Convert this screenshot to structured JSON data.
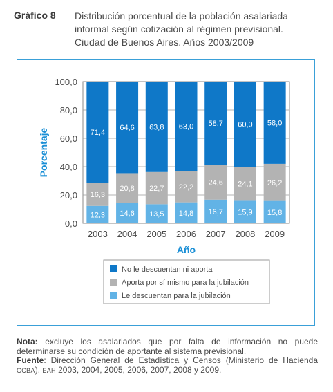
{
  "header": {
    "figure_label": "Gráfico 8",
    "title_lines": [
      "Distribución porcentual de la población asalariada",
      "informal según cotización al régimen previsional.",
      "Ciudad de Buenos Aires. Años 2003/2009"
    ]
  },
  "chart_data": {
    "type": "bar",
    "stacked": true,
    "categories": [
      "2003",
      "2004",
      "2005",
      "2006",
      "2007",
      "2008",
      "2009"
    ],
    "series": [
      {
        "name": "Le descuentan para la jubilación",
        "color": "#62b3e6",
        "values": [
          12.3,
          14.6,
          13.5,
          14.8,
          16.7,
          15.9,
          15.8
        ],
        "labels": [
          "12,3",
          "14,6",
          "13,5",
          "14,8",
          "16,7",
          "15,9",
          "15,8"
        ]
      },
      {
        "name": "Aporta por sí mismo para la jubilación",
        "color": "#b3b3b3",
        "values": [
          16.3,
          20.8,
          22.7,
          22.2,
          24.6,
          24.1,
          26.2
        ],
        "labels": [
          "16,3",
          "20,8",
          "22,7",
          "22,2",
          "24,6",
          "24,1",
          "26,2"
        ]
      },
      {
        "name": "No le descuentan ni aporta",
        "color": "#0f78c8",
        "values": [
          71.4,
          64.6,
          63.8,
          63.0,
          58.7,
          60.0,
          58.0
        ],
        "labels": [
          "71,4",
          "64,6",
          "63,8",
          "63,0",
          "58,7",
          "60,0",
          "58,0"
        ]
      }
    ],
    "legend_order": [
      "No le descuentan ni aporta",
      "Aporta por sí mismo para la jubilación",
      "Le descuentan para la jubilación"
    ],
    "ylim": [
      0,
      100
    ],
    "yticks": [
      "0,0",
      "20,0",
      "40,0",
      "60,0",
      "80,0",
      "100,0"
    ],
    "ytick_values": [
      0,
      20,
      40,
      60,
      80,
      100
    ],
    "xlabel": "Año",
    "ylabel": "Porcentaje",
    "grid": true,
    "legend_position": "bottom",
    "accent_color": "#1a8fd6"
  },
  "footer": {
    "note_label": "Nota:",
    "note_text": " excluye los asalariados que por falta de información no puede determinarse su condición de aportante al sistema previsional.",
    "source_label": "Fuente",
    "source_text_1": ": Dirección General de Estadística y Censos (Ministerio de Hacienda ",
    "source_sc_1": "GCBA",
    "source_text_2": "). ",
    "source_sc_2": "EAH",
    "source_text_3": " 2003, 2004, 2005, 2006, 2007, 2008 y 2009."
  }
}
